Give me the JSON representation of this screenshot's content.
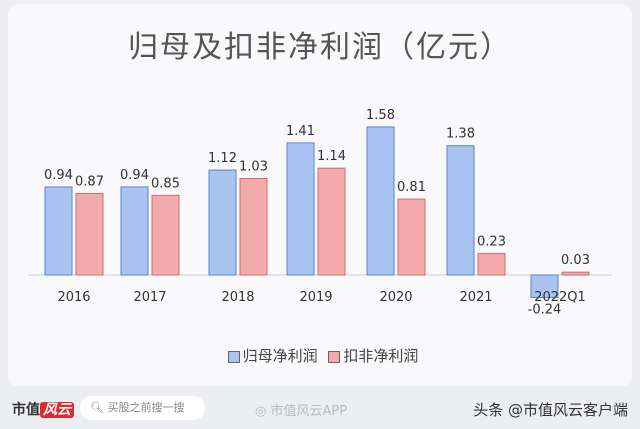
{
  "chart_data": {
    "type": "bar",
    "title": "归母及扣非净利润（亿元）",
    "categories": [
      "2016",
      "2017",
      "2018",
      "2019",
      "2020",
      "2021",
      "2022Q1"
    ],
    "series": [
      {
        "name": "归母净利润",
        "color": "#a9c4f0",
        "values": [
          0.94,
          0.94,
          1.12,
          1.41,
          1.58,
          1.38,
          -0.24
        ]
      },
      {
        "name": "扣非净利润",
        "color": "#f2aaaa",
        "values": [
          0.87,
          0.85,
          1.03,
          1.14,
          0.81,
          0.23,
          0.03
        ]
      }
    ],
    "labels": [
      [
        "0.94",
        "0.94",
        "1.12",
        "1.41",
        "1.58",
        "1.38",
        "-0.24"
      ],
      [
        "0.87",
        "0.85",
        "1.03",
        "1.14",
        "0.81",
        "0.23",
        "0.03"
      ]
    ],
    "xlabel": "",
    "ylabel": "",
    "legend": "bottom-center"
  },
  "footer": {
    "brand": "市值",
    "brand_badge": "风云",
    "search_placeholder": "买股之前搜一搜",
    "weibo": "市值风云APP",
    "source": "头条 @市值风云客户端"
  }
}
